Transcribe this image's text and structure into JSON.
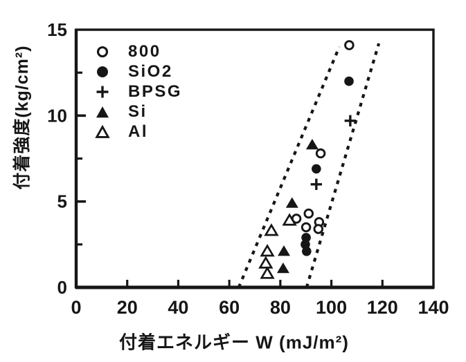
{
  "figure": {
    "ink_color": "#161616",
    "background_color": "#ffffff"
  },
  "chart_data": {
    "type": "scatter",
    "title": "",
    "xlabel": "付着エネルギー W (mJ/m²)",
    "ylabel": "付着強度(kg/cm²)",
    "xlim": [
      0,
      140
    ],
    "ylim": [
      0,
      15
    ],
    "x_ticks_labeled": [
      0,
      20,
      40,
      60,
      80,
      100,
      120,
      140
    ],
    "x_ticks_marked": [
      20,
      40,
      60,
      80,
      100,
      120
    ],
    "y_ticks_labeled": [
      0,
      5,
      10,
      15
    ],
    "y_ticks_major": [
      5,
      10
    ],
    "y_ticks_minor": [
      2.5,
      7.5,
      12.5
    ],
    "grid": false,
    "legend_position": "upper-left-inside",
    "series": [
      {
        "name": "800",
        "marker": "open-circle",
        "points": [
          [
            107,
            14.1
          ],
          [
            95.8,
            7.8
          ],
          [
            91.1,
            4.3
          ],
          [
            86.3,
            4.0
          ],
          [
            90.1,
            3.5
          ],
          [
            95.2,
            3.8
          ],
          [
            94.9,
            3.4
          ]
        ]
      },
      {
        "name": "SiO2",
        "marker": "filled-circle",
        "points": [
          [
            106.9,
            12.0
          ],
          [
            94.1,
            6.9
          ],
          [
            90.1,
            2.9
          ],
          [
            89.8,
            2.5
          ],
          [
            90.3,
            2.1
          ]
        ]
      },
      {
        "name": "BPSG",
        "marker": "plus",
        "points": [
          [
            107.4,
            9.7
          ],
          [
            94.1,
            6.0
          ]
        ]
      },
      {
        "name": "Si",
        "marker": "filled-triangle",
        "points": [
          [
            92.5,
            8.3
          ],
          [
            84.6,
            4.9
          ],
          [
            81.4,
            2.1
          ],
          [
            81.1,
            1.1
          ]
        ]
      },
      {
        "name": "Al",
        "marker": "open-triangle",
        "points": [
          [
            83.6,
            3.9
          ],
          [
            76.5,
            3.3
          ],
          [
            74.9,
            2.1
          ],
          [
            74.3,
            1.4
          ],
          [
            74.9,
            0.8
          ]
        ]
      }
    ],
    "band_lines": [
      {
        "style": "dashed",
        "x1": 63.7,
        "y1": 0,
        "x2": 103.1,
        "y2": 14.0
      },
      {
        "style": "dashed",
        "x1": 90.3,
        "y1": 0,
        "x2": 118.6,
        "y2": 14.2
      }
    ]
  }
}
